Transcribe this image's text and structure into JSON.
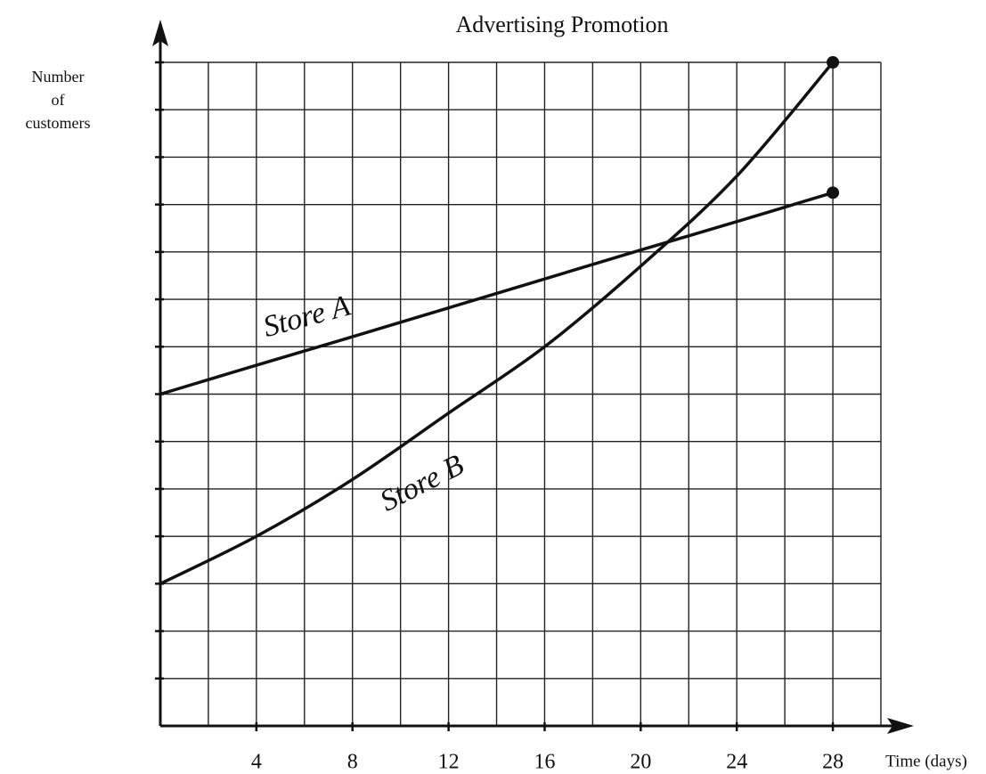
{
  "chart_data": {
    "type": "line",
    "title": "Advertising Promotion",
    "xlabel": "Time (days)",
    "ylabel": [
      "Number",
      "of",
      "customers"
    ],
    "x": [
      0,
      4,
      8,
      12,
      16,
      20,
      24,
      28
    ],
    "series": [
      {
        "name": "Store A",
        "color": "#111111",
        "values": [
          7,
          7.61,
          8.21,
          8.82,
          9.43,
          10.04,
          10.64,
          11.25
        ]
      },
      {
        "name": "Store B",
        "color": "#111111",
        "values": [
          3,
          4,
          5.2,
          6.6,
          8,
          9.7,
          11.6,
          14
        ]
      }
    ],
    "xlim": [
      0,
      30
    ],
    "ylim": [
      0,
      14
    ],
    "xticks": [
      4,
      8,
      12,
      16,
      20,
      24,
      28
    ],
    "xgrid": [
      2,
      4,
      6,
      8,
      10,
      12,
      14,
      16,
      18,
      20,
      22,
      24,
      26,
      28,
      30
    ],
    "ygrid": [
      1,
      2,
      3,
      4,
      5,
      6,
      7,
      8,
      9,
      10,
      11,
      12,
      13,
      14
    ],
    "grid": true
  }
}
